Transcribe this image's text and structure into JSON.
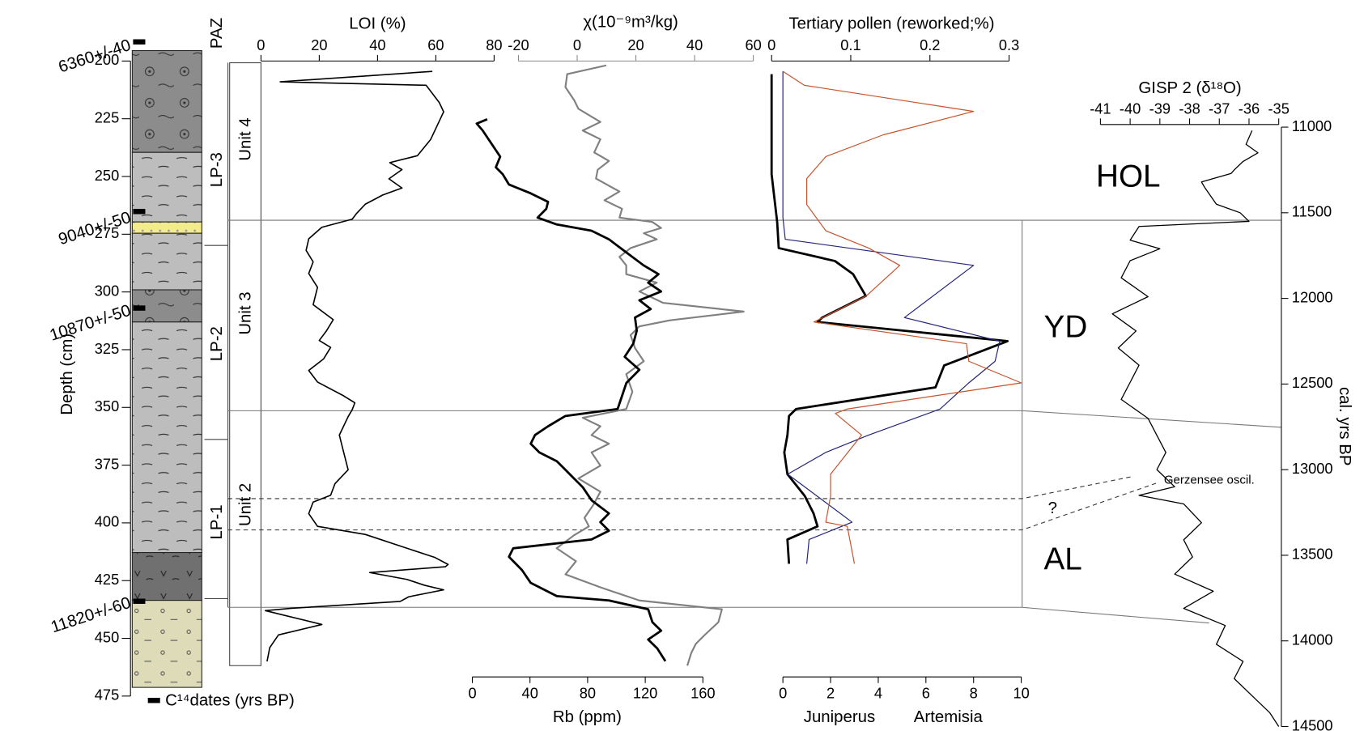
{
  "chart_data": [
    {
      "type": "profile",
      "title": "LOI (%)",
      "xlim": [
        0,
        80
      ],
      "xticks": [
        0,
        20,
        40,
        60,
        80
      ],
      "ylabel": "Depth (cm)",
      "ylim": [
        200,
        475
      ],
      "yticks": [
        200,
        225,
        250,
        275,
        300,
        325,
        350,
        375,
        400,
        425,
        450,
        475
      ],
      "series": [
        {
          "color": "#000000",
          "y": [
            204.5,
            209,
            210.5,
            218,
            222,
            226,
            234,
            241,
            244,
            247,
            251,
            255,
            258,
            262,
            266,
            268.5,
            272,
            277,
            282,
            287,
            292,
            298,
            305.5,
            312,
            317,
            321,
            324,
            329,
            334,
            339,
            345,
            348,
            351,
            354,
            362,
            369.5,
            377,
            383,
            388,
            391,
            396,
            401.5,
            405,
            410,
            415,
            418,
            419,
            421.5,
            424.5,
            427,
            429,
            432,
            434,
            437,
            438,
            444,
            448.5,
            454,
            460
          ],
          "values": [
            58.8,
            6.6,
            56.7,
            61.2,
            62.7,
            61.2,
            58.2,
            53.7,
            44.2,
            48.4,
            43.9,
            48.4,
            41.8,
            35.8,
            32.8,
            31.3,
            20.9,
            16.4,
            15.5,
            17.9,
            16.4,
            19.4,
            17.9,
            24.8,
            22.4,
            20,
            23.9,
            21.5,
            16.4,
            19.4,
            28.4,
            32.2,
            31.3,
            29.9,
            26.9,
            28.4,
            29.9,
            25.4,
            23.9,
            17.9,
            16.4,
            19.4,
            35.8,
            47.8,
            59.7,
            64.2,
            63.3,
            37.3,
            50.1,
            56.1,
            62.7,
            50.7,
            47.8,
            10.4,
            1.5,
            20.9,
            6,
            3,
            2.1
          ]
        }
      ]
    },
    {
      "type": "profile",
      "title": "χ(10⁻⁹m³/kg)",
      "xaxis_color": "#8a8a8a",
      "xlim": [
        -20,
        60
      ],
      "xticks": [
        -20,
        0,
        20,
        40,
        60
      ],
      "x2label": "Rb (ppm)",
      "x2lim": [
        0,
        160
      ],
      "x2ticks": [
        0,
        40,
        80,
        120,
        160
      ],
      "series": [
        {
          "color": "#808080",
          "y": [
            201.9,
            205.7,
            211.3,
            217,
            220.7,
            226.4,
            230.1,
            233.9,
            239.6,
            243.3,
            247.1,
            250.9,
            256.5,
            260.3,
            264,
            267.8,
            269.7,
            272.3,
            274.6,
            277.2,
            281,
            284.8,
            288.5,
            292.3,
            296,
            299.8,
            304.7,
            308.5,
            312.3,
            314.9,
            318.7,
            324.3,
            330,
            335.6,
            343.2,
            350.7,
            354.5,
            358.2,
            362,
            365.7,
            369.5,
            375.2,
            380.8,
            386.5,
            392.2,
            397.8,
            401.5,
            405.3,
            411,
            416.6,
            422.3,
            427.9,
            433.6,
            437.4,
            443,
            448.6,
            452.4,
            456.2,
            461.8
          ],
          "values": [
            9.9,
            -3.4,
            -4,
            -1,
            0.4,
            7.9,
            1.9,
            7.9,
            5.8,
            10.8,
            7,
            6.4,
            14.4,
            9.3,
            15.3,
            14.4,
            25.6,
            28.6,
            22.7,
            27.1,
            18.2,
            14.4,
            16.7,
            16.7,
            27.1,
            21.2,
            29.2,
            56.7,
            31.6,
            21.2,
            18.2,
            19.7,
            22.7,
            16.7,
            18.8,
            16.7,
            1.9,
            7.9,
            4.9,
            10.8,
            4.9,
            7.9,
            0.4,
            7.9,
            5.5,
            2.5,
            4,
            -1,
            -7,
            -0.4,
            -4,
            7.9,
            21.2,
            49.3,
            48.1,
            43.4,
            40.4,
            38.9,
            37.5
          ]
        },
        {
          "color": "#000000",
          "axis": "x2",
          "y": [
            225.2,
            227.1,
            230.1,
            235.8,
            241.4,
            246,
            249,
            253.5,
            257.3,
            261,
            264,
            267.8,
            270.8,
            273.5,
            277.2,
            282.9,
            288.5,
            292.3,
            296,
            299.8,
            303.6,
            307.4,
            311.1,
            316.8,
            322.4,
            328.1,
            333.7,
            339.4,
            345,
            350.7,
            353.7,
            358.2,
            362,
            365.7,
            369.5,
            373.3,
            377,
            380.8,
            384.6,
            390.2,
            395.9,
            399.7,
            403.4,
            407.2,
            411,
            414.7,
            420.4,
            426,
            431.7,
            433.6,
            437.4,
            443,
            446.7,
            450.5,
            454.3,
            459.9
          ],
          "values": [
            10.3,
            3,
            7.2,
            13.3,
            19.3,
            16.3,
            21.1,
            25.4,
            40.5,
            52.5,
            51.3,
            45.3,
            58.6,
            82.7,
            94.8,
            106.9,
            118.9,
            129.2,
            122,
            131,
            115.9,
            123.8,
            112.9,
            114.1,
            111.7,
            105.7,
            115.9,
            106.9,
            103.9,
            100.8,
            64.6,
            52.5,
            43.5,
            40.5,
            46.5,
            58.6,
            64.6,
            70.6,
            76.7,
            82.7,
            94.8,
            88.8,
            94.8,
            82.7,
            28.4,
            25.4,
            34.4,
            40.5,
            58.6,
            94.8,
            122,
            125,
            131,
            122,
            128.3,
            134
          ]
        }
      ]
    },
    {
      "type": "profile",
      "title": "Tertiary pollen (reworked;%)",
      "xlim": [
        0,
        0.3
      ],
      "xticks": [
        0,
        0.1,
        0.2,
        0.3
      ],
      "x2lim": [
        0,
        10
      ],
      "x2ticks": [
        0,
        2,
        4,
        6,
        8,
        10
      ],
      "series": [
        {
          "color": "#000000",
          "y": [
            205.7,
            249,
            269.7,
            281,
            286.6,
            292.3,
            301.7,
            311.1,
            313,
            321.3,
            331.8,
            341.3,
            350.7,
            353.7,
            362,
            369.5,
            378.9,
            388.4,
            395.9,
            401.5,
            407.2,
            417.7
          ],
          "values": [
            0,
            0,
            0.007,
            0.009,
            0.08,
            0.103,
            0.119,
            0.064,
            0.058,
            0.298,
            0.218,
            0.207,
            0.031,
            0.022,
            0.02,
            0.016,
            0.02,
            0.042,
            0.053,
            0.058,
            0.02,
            0.022
          ]
        },
        {
          "name": "Juniperus",
          "color": "#23237a",
          "axis": "x2",
          "y": [
            204.5,
            267.8,
            277.2,
            288.5,
            311.1,
            321.3,
            330,
            339.4,
            350.7,
            362,
            369.5,
            378.9,
            399.7,
            407.2,
            417.7
          ],
          "values": [
            0,
            0,
            0.1,
            8,
            5.1,
            9.1,
            8.9,
            7.8,
            6.6,
            3.6,
            1.8,
            0.2,
            2.9,
            1.1,
            1
          ]
        },
        {
          "name": "Artemisia",
          "color": "#c5532c",
          "axis": "x2",
          "y": [
            204.5,
            210.5,
            221.8,
            232,
            241.4,
            250.9,
            262.2,
            273.5,
            281,
            288.5,
            301.7,
            313,
            322.4,
            330,
            339.4,
            350.7,
            352.6,
            362,
            378.9,
            388.4,
            399.7,
            401.5,
            417.7
          ],
          "values": [
            0,
            0.9,
            8,
            4.2,
            1.8,
            1,
            1,
            1.8,
            3.6,
            4.9,
            3.5,
            1.3,
            7.7,
            7.8,
            10,
            2.7,
            2.2,
            3.3,
            2,
            2,
            1.8,
            2.7,
            3
          ]
        }
      ]
    },
    {
      "type": "profile",
      "title": "GISP 2 (δ¹⁸O)",
      "xlim": [
        -41,
        -35
      ],
      "xticks": [
        -41,
        -40,
        -39,
        -38,
        -37,
        -36,
        -35
      ],
      "ylabel": "cal. yrs BP",
      "ylim": [
        11000,
        14500
      ],
      "yticks": [
        11000,
        11500,
        12000,
        12500,
        13000,
        13500,
        14000,
        14500
      ],
      "series": [
        {
          "color": "#000000",
          "y": [
            11020,
            11100,
            11150,
            11200,
            11250,
            11270,
            11320,
            11350,
            11400,
            11450,
            11500,
            11550,
            11580,
            11660,
            11710,
            11780,
            11880,
            11990,
            12090,
            12190,
            12290,
            12390,
            12490,
            12590,
            12700,
            12800,
            12900,
            13000,
            13100,
            13150,
            13200,
            13310,
            13410,
            13510,
            13610,
            13710,
            13810,
            13910,
            14020,
            14120,
            14220,
            14320,
            14420,
            14500
          ],
          "values": [
            -35.9,
            -36.1,
            -35.7,
            -36.2,
            -36.5,
            -36.6,
            -37.6,
            -37.5,
            -37.3,
            -37.1,
            -36.3,
            -36,
            -39.7,
            -40,
            -39,
            -40,
            -40.3,
            -39.4,
            -40.6,
            -39.8,
            -40.4,
            -39.7,
            -40,
            -40.3,
            -39.4,
            -39.1,
            -38.8,
            -39.1,
            -38.5,
            -39.7,
            -38.2,
            -37.6,
            -38.2,
            -37.9,
            -38.5,
            -37.2,
            -38.2,
            -36.8,
            -37.1,
            -36.2,
            -36.5,
            -35.9,
            -35.3,
            -35
          ]
        }
      ]
    }
  ],
  "stratigraphy": {
    "zone_title": "PAZ",
    "zones": [
      "LP-3",
      "LP-2",
      "LP-1"
    ],
    "units": [
      "Unit 4",
      "Unit 3",
      "Unit 2"
    ],
    "dates": [
      "6360+/-40",
      "9040+/-50",
      "10870+/-50",
      "11820+/-60"
    ],
    "dates_legend": "C¹⁴dates (yrs BP)"
  },
  "periods": [
    "HOL",
    "YD",
    "AL"
  ],
  "annotations": [
    "?",
    "Gerzensee oscil."
  ]
}
